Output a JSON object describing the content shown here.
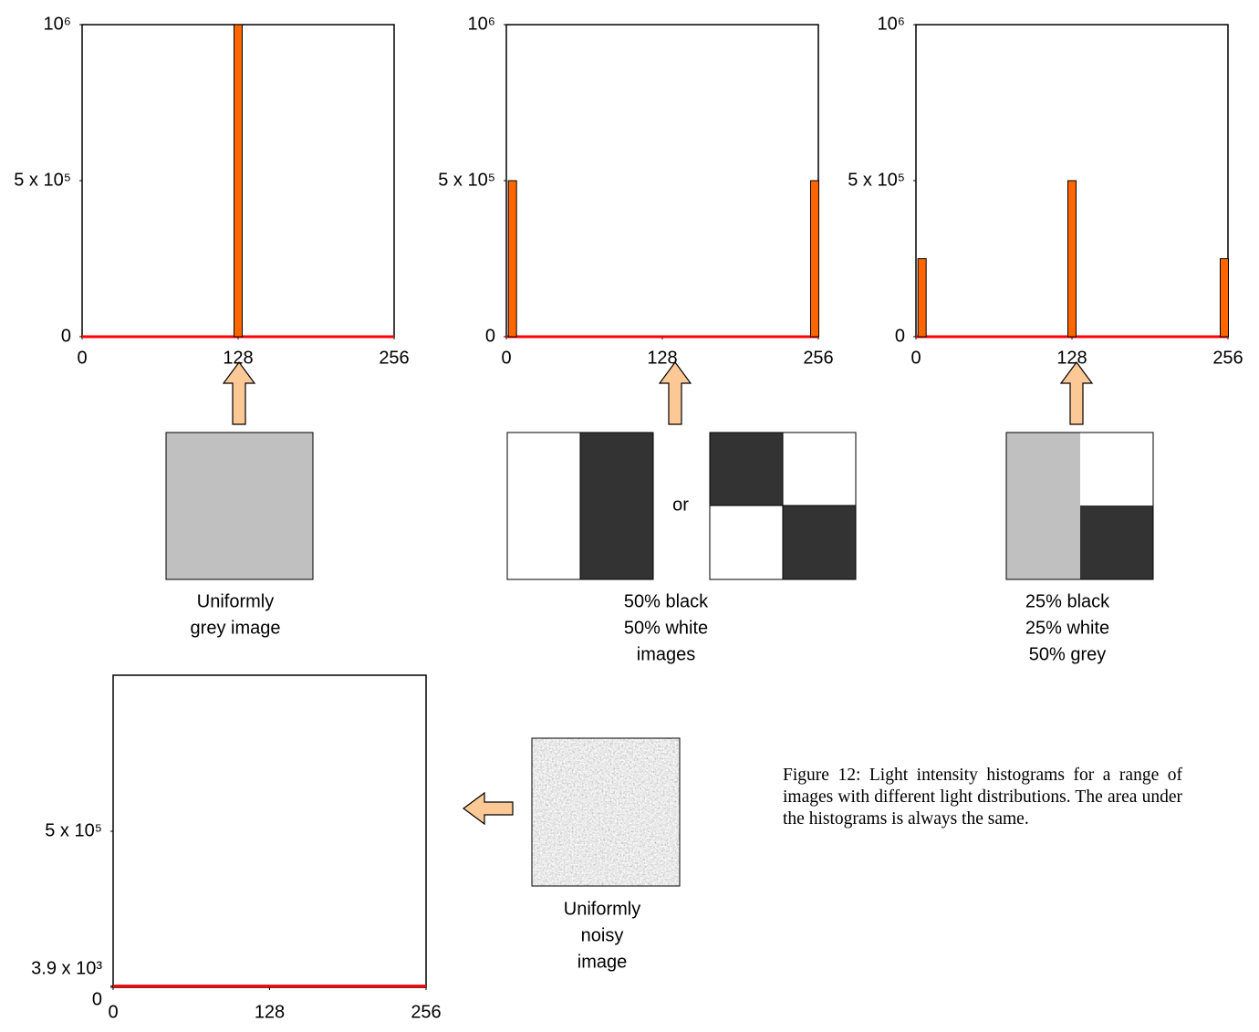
{
  "chart_data": [
    {
      "type": "bar",
      "xlim": [
        0,
        256
      ],
      "xticks": [
        0,
        128,
        256
      ],
      "ylim": [
        0,
        1000000
      ],
      "yticks": [
        0,
        {
          "value": 500000,
          "label": "5 x 10⁵"
        },
        {
          "value": 1000000,
          "label": "10⁶"
        }
      ],
      "series": [
        {
          "type": "bar",
          "color": "#ff6600",
          "x": [
            128
          ],
          "values": [
            1000000
          ]
        },
        {
          "type": "line",
          "color": "#ff0000",
          "x": [
            0,
            256
          ],
          "values": [
            0,
            0
          ]
        }
      ],
      "caption": [
        "Uniformly",
        "grey image"
      ]
    },
    {
      "type": "bar",
      "xlim": [
        0,
        256
      ],
      "xticks": [
        0,
        128,
        256
      ],
      "ylim": [
        0,
        1000000
      ],
      "yticks": [
        0,
        {
          "value": 500000,
          "label": "5 x 10⁵"
        },
        {
          "value": 1000000,
          "label": "10⁶"
        }
      ],
      "series": [
        {
          "type": "bar",
          "color": "#ff6600",
          "x": [
            5,
            253
          ],
          "values": [
            500000,
            500000
          ]
        },
        {
          "type": "line",
          "color": "#ff0000",
          "x": [
            0,
            256
          ],
          "values": [
            0,
            0
          ]
        }
      ],
      "caption": [
        "50% black",
        "50% white",
        "images"
      ],
      "separator": "or"
    },
    {
      "type": "bar",
      "xlim": [
        0,
        256
      ],
      "xticks": [
        0,
        128,
        256
      ],
      "ylim": [
        0,
        1000000
      ],
      "yticks": [
        0,
        {
          "value": 500000,
          "label": "5 x 10⁵"
        },
        {
          "value": 1000000,
          "label": "10⁶"
        }
      ],
      "series": [
        {
          "type": "bar",
          "color": "#ff6600",
          "x": [
            5,
            128,
            253
          ],
          "values": [
            250000,
            500000,
            250000
          ]
        },
        {
          "type": "line",
          "color": "#ff0000",
          "x": [
            0,
            256
          ],
          "values": [
            0,
            0
          ]
        }
      ],
      "caption": [
        "25% black",
        "25% white",
        "50% grey"
      ]
    },
    {
      "type": "line",
      "xlim": [
        0,
        256
      ],
      "xticks": [
        0,
        128,
        256
      ],
      "ylim": [
        0,
        1000000
      ],
      "yticks": [
        0,
        {
          "value": 3900,
          "label": "3.9 x 10³"
        },
        {
          "value": 500000,
          "label": "5 x 10⁵"
        }
      ],
      "series": [
        {
          "type": "line",
          "color": "#ff0000",
          "x": [
            0,
            256
          ],
          "values": [
            3900,
            3900
          ]
        }
      ],
      "caption": [
        "Uniformly",
        "noisy",
        "image"
      ]
    }
  ],
  "figure_caption": "Figure 12: Light intensity histograms for a range of images with different light distributions. The area under the histograms is always the same."
}
